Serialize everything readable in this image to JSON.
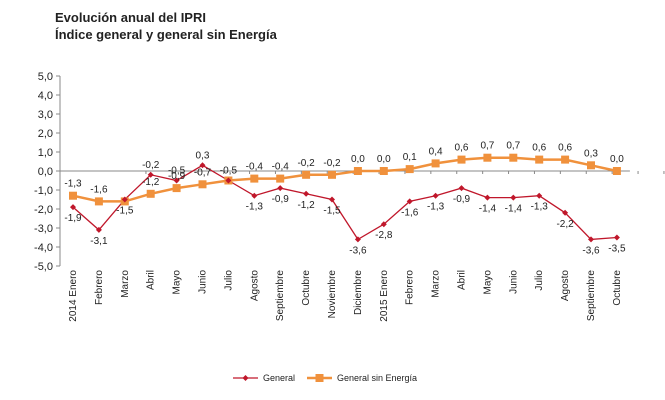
{
  "chart_data": {
    "type": "line",
    "title": "Evolución anual del IPRI",
    "subtitle": "Índice general y general sin Energía",
    "xlabel": "",
    "ylabel": "",
    "ylim": [
      -5,
      5
    ],
    "y_ticks": [
      "5,0",
      "4,0",
      "3,0",
      "2,0",
      "1,0",
      "0,0",
      "-1,0",
      "-2,0",
      "-3,0",
      "-4,0",
      "-5,0"
    ],
    "categories": [
      "2014 Enero",
      "Febrero",
      "Marzo",
      "Abril",
      "Mayo",
      "Junio",
      "Julio",
      "Agosto",
      "Septiembre",
      "Octubre",
      "Noviembre",
      "Diciembre",
      "2015 Enero",
      "Febrero",
      "Marzo",
      "Abril",
      "Mayo",
      "Junio",
      "Julio",
      "Agosto",
      "Septiembre",
      "Octubre"
    ],
    "grid": false,
    "legend_position": "bottom",
    "series": [
      {
        "name": "General",
        "color": "#c0172b",
        "marker": "diamond",
        "values": [
          -1.9,
          -3.1,
          -1.5,
          -0.2,
          -0.5,
          0.3,
          -0.5,
          -1.3,
          -0.9,
          -1.2,
          -1.5,
          -3.6,
          -2.8,
          -1.6,
          -1.3,
          -0.9,
          -1.4,
          -1.4,
          -1.3,
          -2.2,
          -3.6,
          -3.5
        ],
        "labels": [
          "-1,9",
          "-3,1",
          "-1,5",
          "-0,2",
          "-0,5",
          "0,3",
          "-0,5",
          "-1,3",
          "-0,9",
          "-1,2",
          "-1,5",
          "-3,6",
          "-2,8",
          "-1,6",
          "-1,3",
          "-0,9",
          "-1,4",
          "-1,4",
          "-1,3",
          "-2,2",
          "-3,6",
          "-3,5"
        ]
      },
      {
        "name": "General sin Energía",
        "color": "#f0913c",
        "marker": "square",
        "values": [
          -1.3,
          -1.6,
          -1.6,
          -1.2,
          -0.9,
          -0.7,
          -0.5,
          -0.4,
          -0.4,
          -0.2,
          -0.2,
          0.0,
          0.0,
          0.1,
          0.4,
          0.6,
          0.7,
          0.7,
          0.6,
          0.6,
          0.3,
          0.0
        ],
        "labels": [
          "-1,3",
          "-1,6",
          "",
          "-1,2",
          "-0,9",
          "-0,7",
          "",
          "-0,4",
          "-0,4",
          "-0,2",
          "-0,2",
          "0,0",
          "0,0",
          "0,1",
          "0,4",
          "0,6",
          "0,7",
          "0,7",
          "0,6",
          "0,6",
          "0,3",
          "0,0"
        ]
      }
    ]
  }
}
